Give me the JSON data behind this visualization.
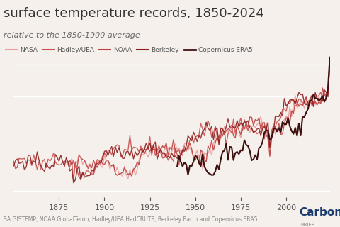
{
  "title": "surface temperature records, 1850-2024",
  "subtitle": "relative to the 1850-1900 average",
  "footer": "SA GISTEMP, NOAA GlobalTemp, Hadley/UEA HadCRUTS, Berkeley Earth and Copernicus ERA5",
  "legend_labels": [
    "NASA",
    "Hadley/UEA",
    "NOAA",
    "Berkeley",
    "Copernicus ERA5"
  ],
  "colors": {
    "NASA": "#e8a0a0",
    "Hadley/UEA": "#c85050",
    "NOAA": "#c04040",
    "Berkeley": "#8b2020",
    "Copernicus ERA5": "#3d1010"
  },
  "linewidths": {
    "NASA": 1.0,
    "Hadley/UEA": 1.0,
    "NOAA": 1.0,
    "Berkeley": 1.0,
    "Copernicus ERA5": 1.5
  },
  "xlim": [
    1850,
    2024
  ],
  "ylim": [
    -0.6,
    1.7
  ],
  "xticks": [
    1875,
    1900,
    1925,
    1950,
    1975,
    2000
  ],
  "background_color": "#f5f0eb",
  "grid_color": "#ffffff",
  "title_fontsize": 13,
  "subtitle_fontsize": 8,
  "tick_fontsize": 8
}
